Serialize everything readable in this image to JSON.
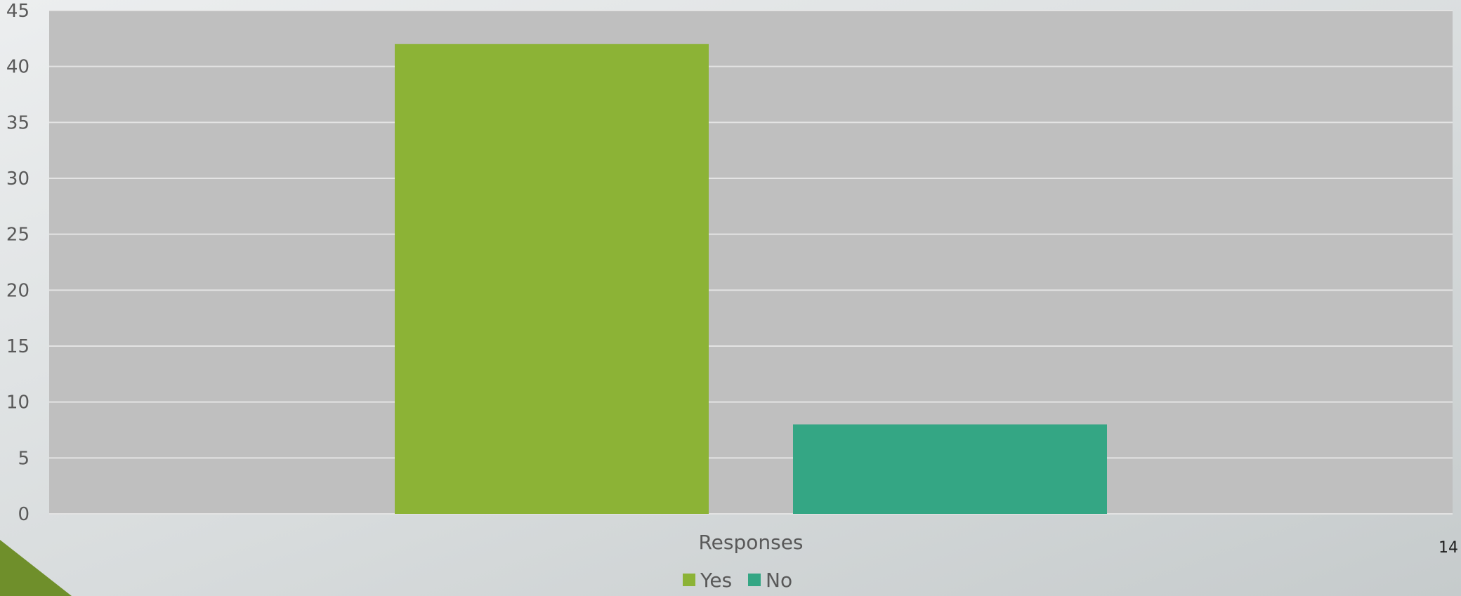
{
  "slide_number": "14",
  "colors": {
    "plot_background": "#bfbfbf",
    "gridline": "#e3e3e3",
    "yes_bar": "#8cb336",
    "no_bar": "#34a684",
    "text": "#595959",
    "accent": "#6f8f2b"
  },
  "chart_data": {
    "type": "bar",
    "categories": [
      "Responses"
    ],
    "series": [
      {
        "name": "Yes",
        "values": [
          42
        ]
      },
      {
        "name": "No",
        "values": [
          8
        ]
      }
    ],
    "xlabel": "Responses",
    "ylabel": "",
    "ylim": [
      0,
      45
    ],
    "yticks": [
      "0",
      "5",
      "10",
      "15",
      "20",
      "25",
      "30",
      "35",
      "40",
      "45"
    ],
    "grid": true,
    "legend_position": "bottom"
  }
}
